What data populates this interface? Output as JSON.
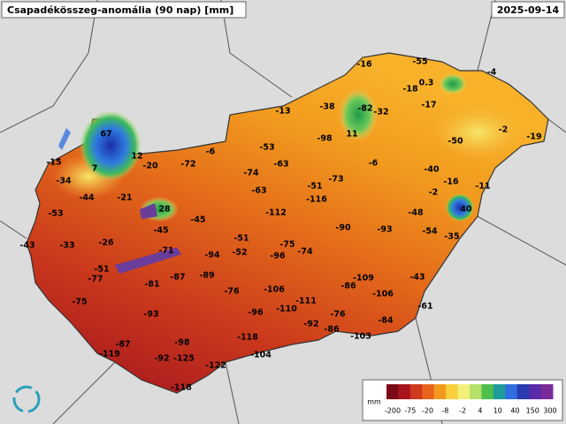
{
  "header": {
    "title": "Csapadékösszeg-anomália (90 nap) [mm]",
    "date": "2025-09-14"
  },
  "stations": [
    "-16",
    "-55",
    "-4",
    "-18",
    "0.3",
    "-38",
    "-82",
    "-32",
    "-17",
    "-13",
    "67",
    "11",
    "-98",
    "-50",
    "-2",
    "-19",
    "-53",
    "-6",
    "12",
    "-15",
    "7",
    "-20",
    "-72",
    "-63",
    "-6",
    "-40",
    "-74",
    "-34",
    "-16",
    "-11",
    "-44",
    "-21",
    "-51",
    "-73",
    "-2",
    "-63",
    "-116",
    "-53",
    "28",
    "-112",
    "-45",
    "-48",
    "40",
    "-90",
    "-93",
    "-54",
    "-43",
    "-33",
    "-26",
    "-45",
    "-51",
    "-75",
    "-74",
    "-35",
    "-71",
    "-94",
    "-52",
    "-96",
    "-51",
    "-77",
    "-81",
    "-87",
    "-89",
    "-109",
    "-43",
    "-76",
    "-106",
    "-86",
    "-106",
    "-75",
    "-111",
    "-93",
    "-96",
    "-110",
    "-61",
    "-76",
    "-92",
    "-86",
    "-84",
    "-118",
    "-103",
    "-87",
    "-98",
    "-119",
    "-92",
    "-125",
    "-104",
    "-122",
    "-118"
  ],
  "legend": {
    "unit": "mm",
    "labels": [
      "-200",
      "-75",
      "-20",
      "-8",
      "-2",
      "4",
      "10",
      "40",
      "150",
      "300"
    ]
  }
}
